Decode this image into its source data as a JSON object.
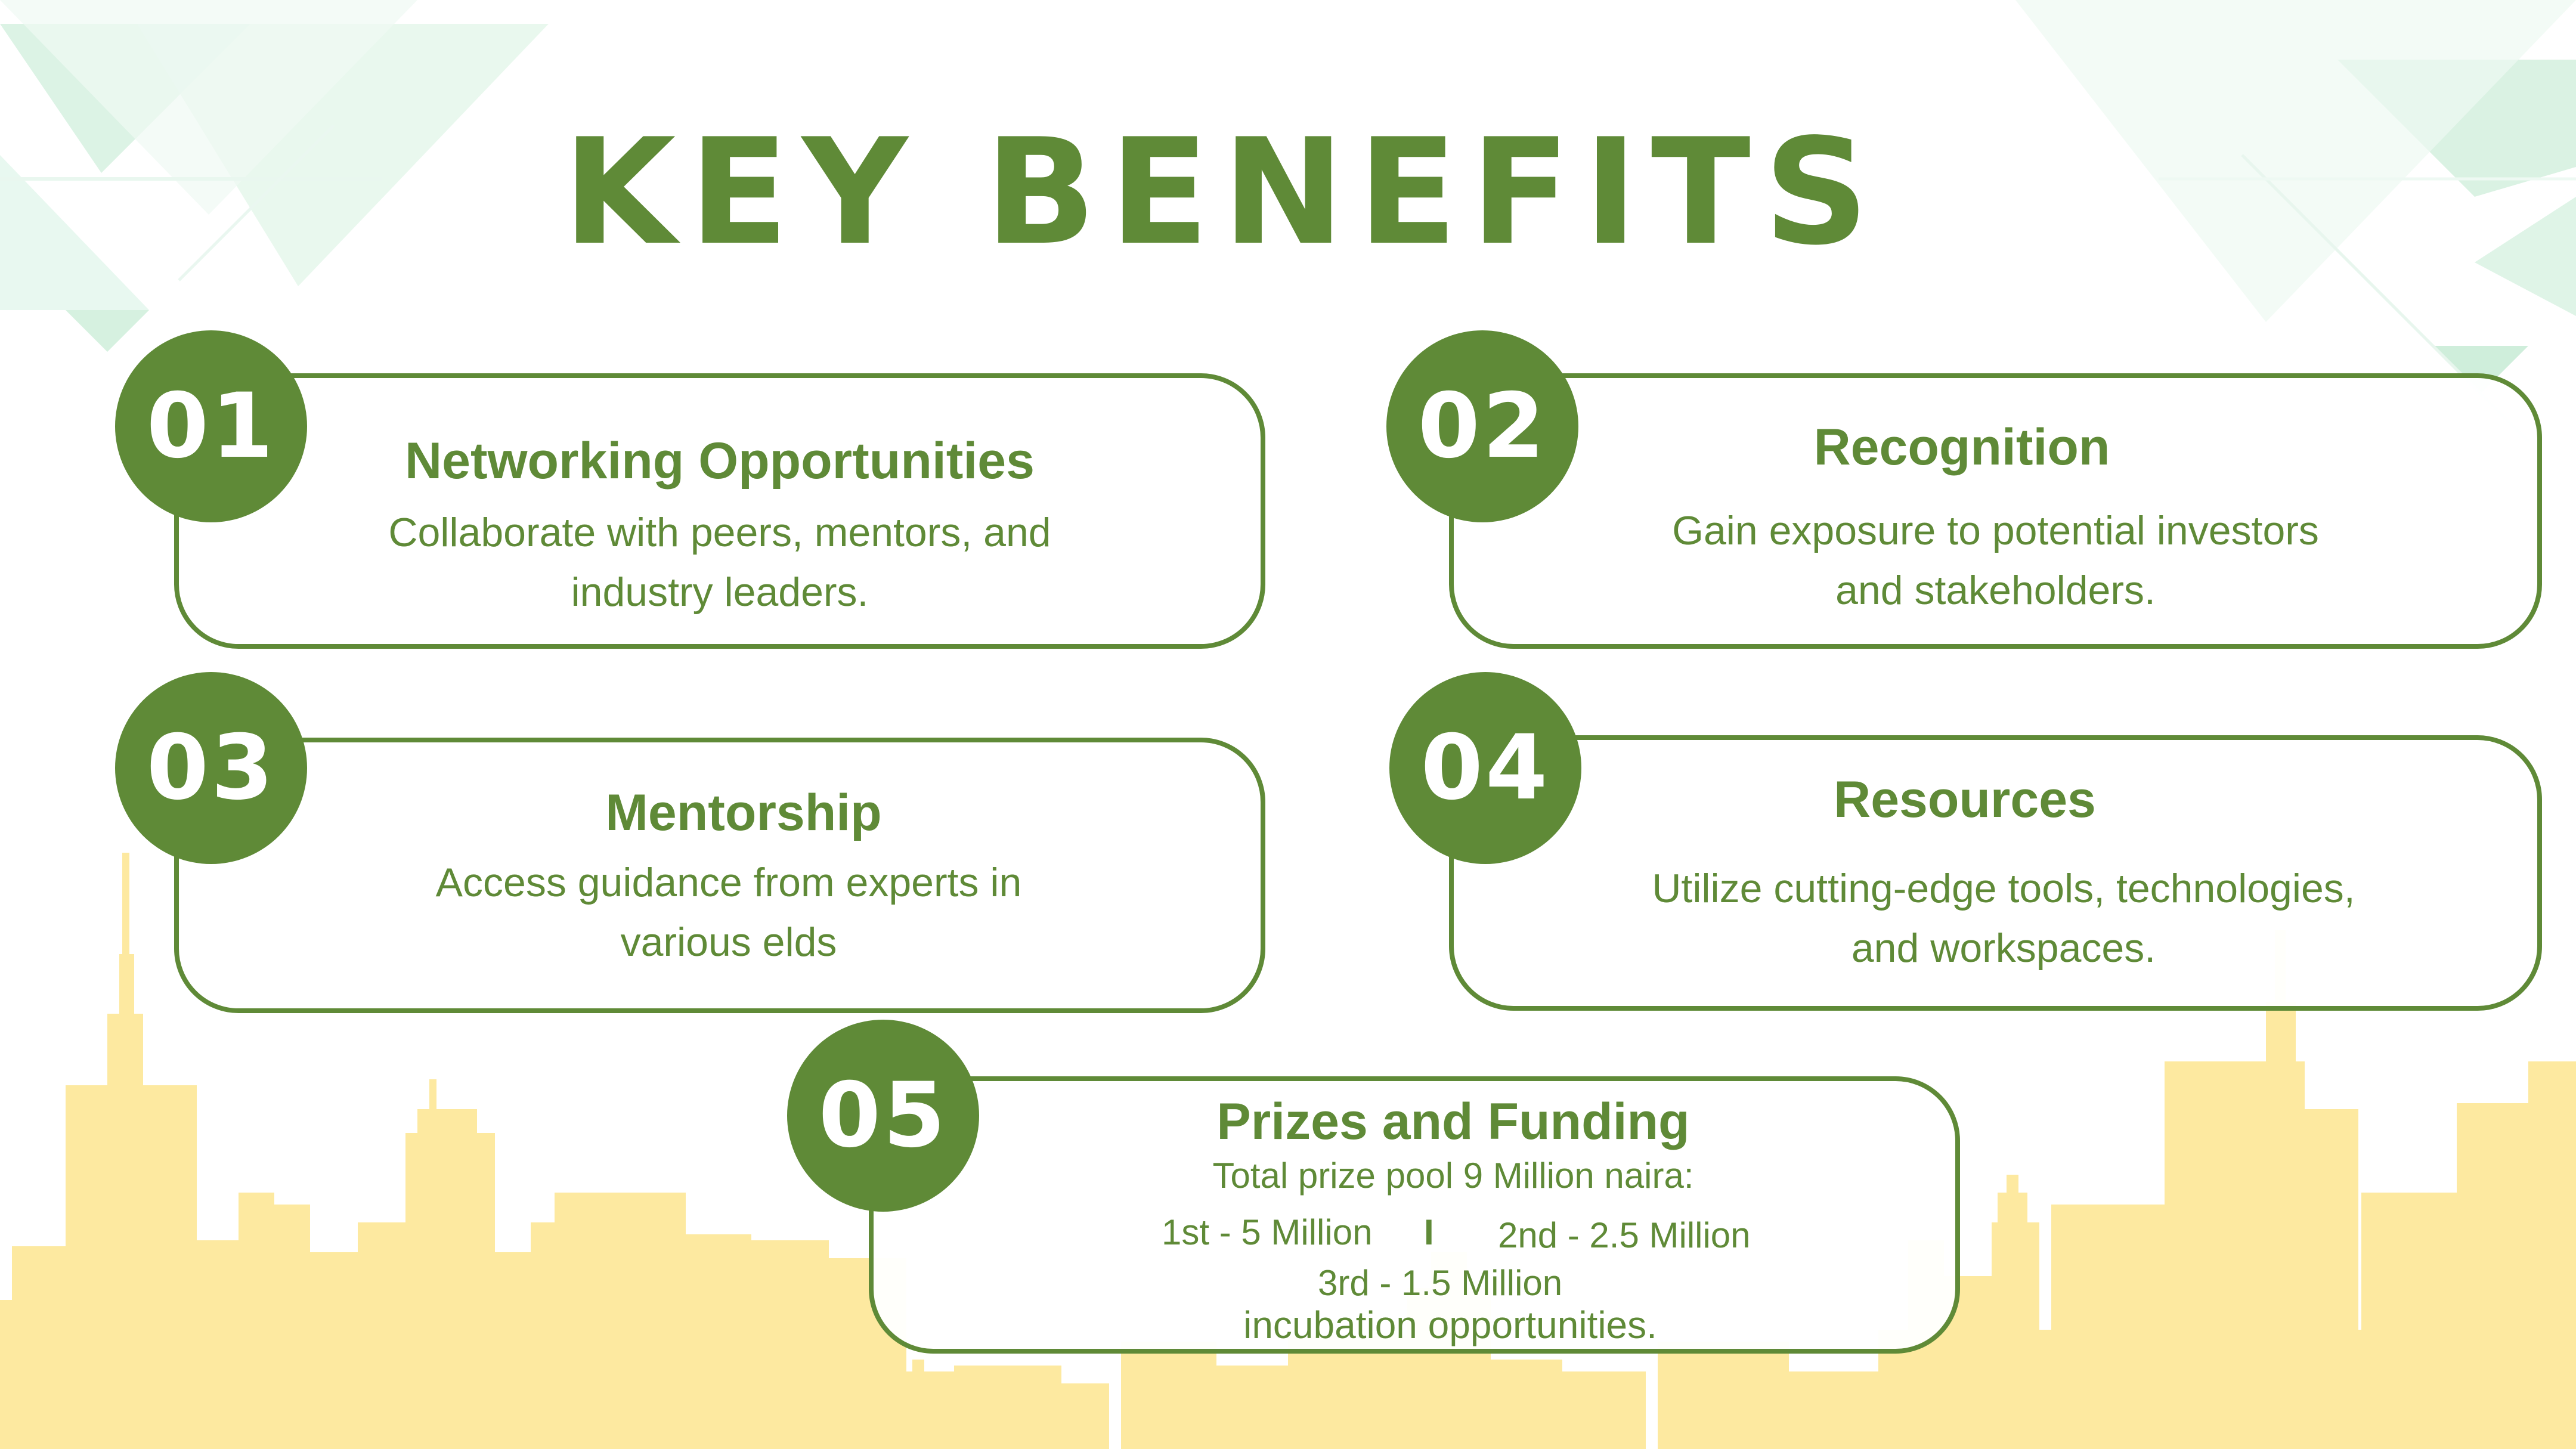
{
  "title": "KEY BENEFITS",
  "colors": {
    "primary_green": "#5f8a37",
    "light_green": "#d8f2e2",
    "skyline_yellow": "#fde9a0",
    "background": "#ffffff"
  },
  "benefits": [
    {
      "number": "01",
      "heading": "Networking Opportunities",
      "lines": [
        "Collaborate with peers, mentors, and",
        "industry leaders."
      ]
    },
    {
      "number": "02",
      "heading": "Recognition",
      "lines": [
        "Gain exposure to potential investors",
        "and stakeholders."
      ]
    },
    {
      "number": "03",
      "heading": "Mentorship",
      "lines": [
        "Access guidance from experts in",
        "various elds"
      ]
    },
    {
      "number": "04",
      "heading": "Resources",
      "lines": [
        "Utilize cutting-edge tools, technologies,",
        "and workspaces."
      ]
    },
    {
      "number": "05",
      "heading": "Prizes and Funding",
      "pool": "Total prize pool 9 Million naira:",
      "first": "1st - 5 Million",
      "separator": "I",
      "second": "2nd - 2.5 Million",
      "third": "3rd - 1.5 Million",
      "extra": "incubation opportunities."
    }
  ]
}
